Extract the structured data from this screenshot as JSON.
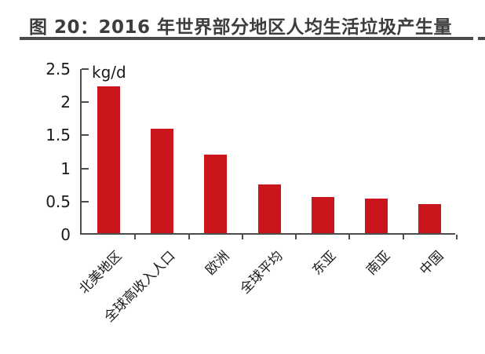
{
  "title": "图 20：2016 年世界部分地区人均生活垃圾产生量",
  "colors": {
    "bar": "#c9151b",
    "axis": "#4d4d4d",
    "text": "#1a1a1a",
    "title": "#3d3d3d",
    "underline": "#4a4a4a",
    "background": "#ffffff"
  },
  "chart_data": {
    "type": "bar",
    "title": "图 20：2016 年世界部分地区人均生活垃圾产生量",
    "unit_label": "kg/d",
    "categories": [
      "北美地区",
      "全球高收入人口",
      "欧洲",
      "全球平均",
      "东亚",
      "南亚",
      "中国"
    ],
    "values": [
      2.21,
      1.58,
      1.18,
      0.73,
      0.55,
      0.52,
      0.44
    ],
    "xlabel": "",
    "ylabel": "kg/d",
    "ylim": [
      0,
      2.5
    ],
    "ytick_step": 0.5,
    "ytick_labels": [
      "0",
      "0.5",
      "1",
      "1.5",
      "2",
      "2.5"
    ],
    "grid": false,
    "legend_position": "none",
    "bar_color": "#c9151b",
    "category_label_rotation_deg": 45
  }
}
